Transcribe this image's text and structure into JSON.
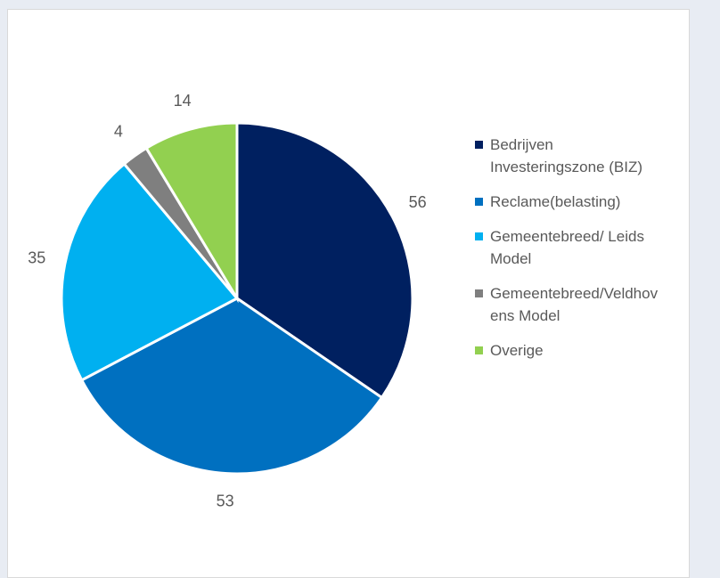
{
  "chart_data": {
    "type": "pie",
    "categories": [
      "Bedrijven Investeringszone (BIZ)",
      "Reclame(belasting)",
      "Gemeentebreed/ Leids Model",
      "Gemeentebreed/Veldhovens Model",
      "Overige"
    ],
    "values": [
      56,
      53,
      35,
      4,
      14
    ],
    "colors": [
      "#002060",
      "#0070c0",
      "#00b0f0",
      "#7f7f7f",
      "#92d050"
    ],
    "legend": "right"
  }
}
